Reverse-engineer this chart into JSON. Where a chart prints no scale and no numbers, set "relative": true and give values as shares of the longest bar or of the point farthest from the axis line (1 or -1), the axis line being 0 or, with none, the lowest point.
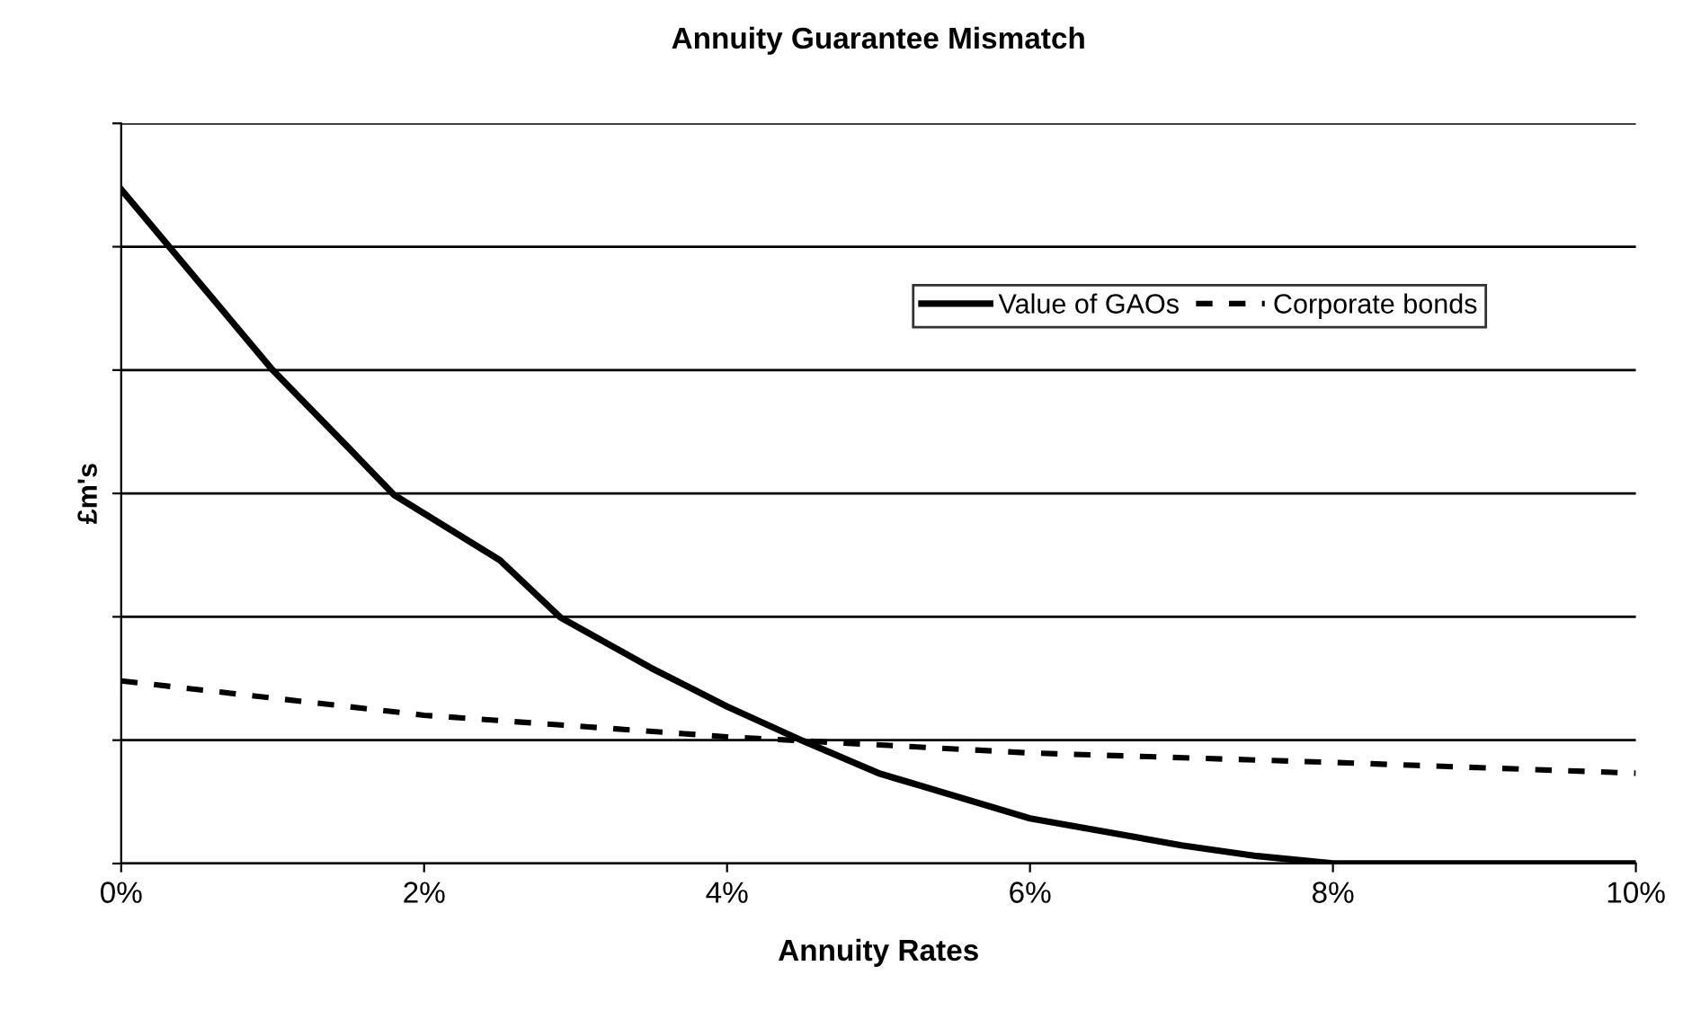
{
  "chart_data": {
    "type": "line",
    "title": "Annuity Guarantee Mismatch",
    "xlabel": "Annuity Rates",
    "ylabel": "£m's",
    "relative": true,
    "xlim": [
      0,
      10
    ],
    "xticks": [
      {
        "value": 0,
        "label": "0%"
      },
      {
        "value": 2,
        "label": "2%"
      },
      {
        "value": 4,
        "label": "4%"
      },
      {
        "value": 6,
        "label": "6%"
      },
      {
        "value": 8,
        "label": "8%"
      },
      {
        "value": 10,
        "label": "10%"
      }
    ],
    "tick_labels": "x",
    "grid": "y",
    "legend": "top right",
    "series": [
      {
        "name": "Value of GAOs",
        "color": "#000000",
        "line_style": "solid",
        "x": [
          0,
          0.5,
          1,
          1.5,
          1.8,
          2.5,
          2.9,
          3.5,
          4,
          4.5,
          5,
          6,
          7,
          7.5,
          8,
          9,
          10
        ],
        "values": [
          1,
          0.866,
          0.732,
          0.617,
          0.547,
          0.45,
          0.365,
          0.29,
          0.233,
          0.182,
          0.134,
          0.067,
          0.027,
          0.011,
          0,
          0,
          0
        ]
      },
      {
        "name": "Corporate bonds",
        "color": "#000000",
        "line_style": "dashed",
        "x": [
          0,
          2,
          4,
          6,
          8,
          10
        ],
        "values": [
          0.271,
          0.22,
          0.188,
          0.164,
          0.15,
          0.134
        ]
      }
    ]
  }
}
